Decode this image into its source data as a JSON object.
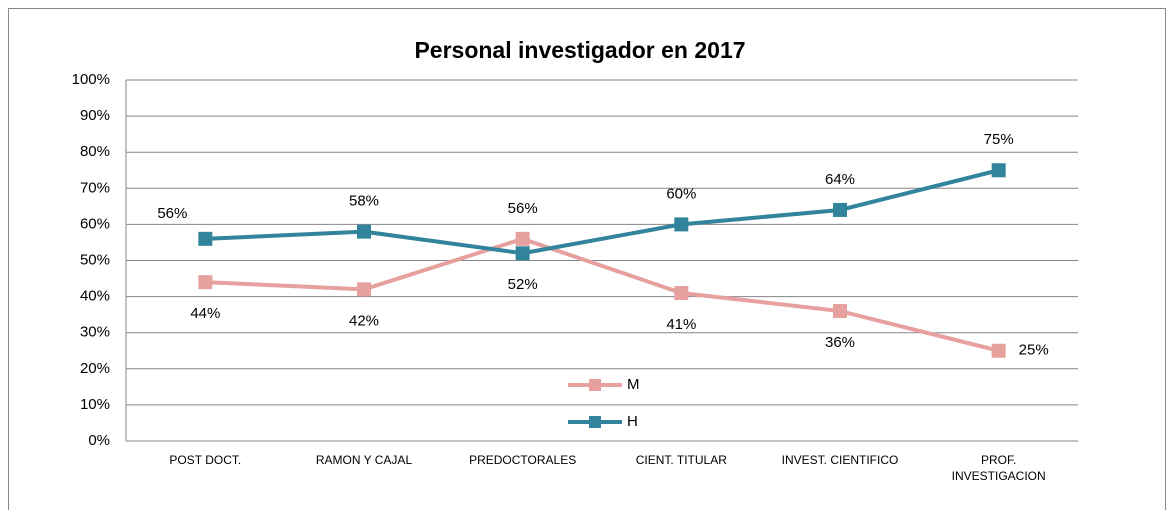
{
  "chart_data": {
    "type": "line",
    "title": "Personal investigador en 2017",
    "categories": [
      "POST DOCT.",
      "RAMON Y CAJAL",
      "PREDOCTORALES",
      "CIENT. TITULAR",
      "INVEST. CIENTIFICO",
      "PROF. INVESTIGACION"
    ],
    "series": [
      {
        "name": "M",
        "color": "#e6a09e",
        "values": [
          44,
          42,
          56,
          41,
          36,
          25
        ],
        "value_labels": [
          "44%",
          "42%",
          "56%",
          "41%",
          "36%",
          "25%"
        ]
      },
      {
        "name": "H",
        "color": "#31849b",
        "values": [
          56,
          58,
          52,
          60,
          64,
          75
        ],
        "value_labels": [
          "56%",
          "58%",
          "52%",
          "60%",
          "64%",
          "75%"
        ]
      }
    ],
    "ylim": [
      0,
      100
    ],
    "yticks": [
      {
        "value": 0,
        "label": "0%"
      },
      {
        "value": 10,
        "label": "10%"
      },
      {
        "value": 20,
        "label": "20%"
      },
      {
        "value": 30,
        "label": "30%"
      },
      {
        "value": 40,
        "label": "40%"
      },
      {
        "value": 50,
        "label": "50%"
      },
      {
        "value": 60,
        "label": "60%"
      },
      {
        "value": 70,
        "label": "70%"
      },
      {
        "value": 80,
        "label": "80%"
      },
      {
        "value": 90,
        "label": "90%"
      },
      {
        "value": 100,
        "label": "100%"
      }
    ],
    "grid": true
  }
}
